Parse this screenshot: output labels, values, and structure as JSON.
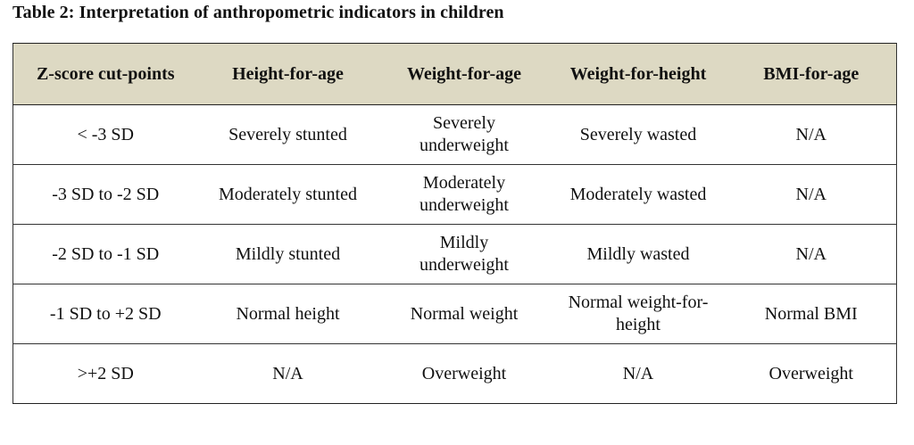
{
  "caption": "Table 2: Interpretation of anthropometric indicators in children",
  "table": {
    "headers": [
      "Z-score cut-points",
      "Height-for-age",
      "Weight-for-age",
      "Weight-for-height",
      "BMI-for-age"
    ],
    "rows": [
      [
        "< -3 SD",
        "Severely stunted",
        "Severely underweight",
        "Severely wasted",
        "N/A"
      ],
      [
        "-3 SD to -2 SD",
        "Moderately stunted",
        "Moderately underweight",
        "Moderately wasted",
        "N/A"
      ],
      [
        "-2 SD to -1 SD",
        "Mildly stunted",
        "Mildly underweight",
        "Mildly wasted",
        "N/A"
      ],
      [
        "-1 SD to +2 SD",
        "Normal height",
        "Normal weight",
        "Normal weight-for-height",
        "Normal BMI"
      ],
      [
        ">+2 SD",
        "N/A",
        "Overweight",
        "N/A",
        "Overweight"
      ]
    ],
    "header_background": "#ddd9c3"
  }
}
